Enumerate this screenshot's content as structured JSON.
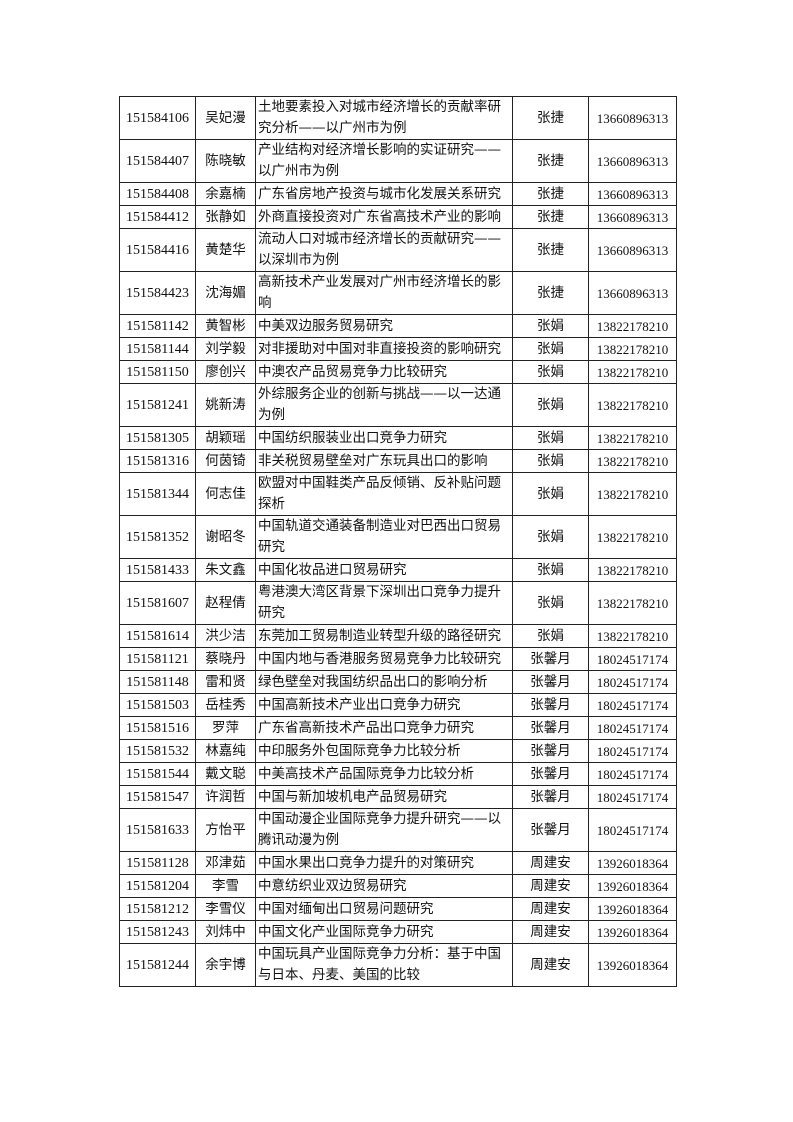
{
  "rows": [
    [
      "151584106",
      "吴妃漫",
      "土地要素投入对城市经济增长的贡献率研究分析——以广州市为例",
      "张捷",
      "13660896313"
    ],
    [
      "151584407",
      "陈晓敏",
      "产业结构对经济增长影响的实证研究——以广州市为例",
      "张捷",
      "13660896313"
    ],
    [
      "151584408",
      "余嘉楠",
      "广东省房地产投资与城市化发展关系研究",
      "张捷",
      "13660896313"
    ],
    [
      "151584412",
      "张静如",
      "外商直接投资对广东省高技术产业的影响",
      "张捷",
      "13660896313"
    ],
    [
      "151584416",
      "黄楚华",
      "流动人口对城市经济增长的贡献研究——以深圳市为例",
      "张捷",
      "13660896313"
    ],
    [
      "151584423",
      "沈海媚",
      "高新技术产业发展对广州市经济增长的影响",
      "张捷",
      "13660896313"
    ],
    [
      "151581142",
      "黄智彬",
      "中美双边服务贸易研究",
      "张娟",
      "13822178210"
    ],
    [
      "151581144",
      "刘学毅",
      "对非援助对中国对非直接投资的影响研究",
      "张娟",
      "13822178210"
    ],
    [
      "151581150",
      "廖创兴",
      "中澳农产品贸易竞争力比较研究",
      "张娟",
      "13822178210"
    ],
    [
      "151581241",
      "姚新涛",
      "外综服务企业的创新与挑战——以一达通为例",
      "张娟",
      "13822178210"
    ],
    [
      "151581305",
      "胡颖瑶",
      "中国纺织服装业出口竞争力研究",
      "张娟",
      "13822178210"
    ],
    [
      "151581316",
      "何茵锜",
      "非关税贸易壁垒对广东玩具出口的影响",
      "张娟",
      "13822178210"
    ],
    [
      "151581344",
      "何志佳",
      "欧盟对中国鞋类产品反倾销、反补贴问题探析",
      "张娟",
      "13822178210"
    ],
    [
      "151581352",
      "谢昭冬",
      "中国轨道交通装备制造业对巴西出口贸易研究",
      "张娟",
      "13822178210"
    ],
    [
      "151581433",
      "朱文鑫",
      "中国化妆品进口贸易研究",
      "张娟",
      "13822178210"
    ],
    [
      "151581607",
      "赵程倩",
      "粤港澳大湾区背景下深圳出口竞争力提升研究",
      "张娟",
      "13822178210"
    ],
    [
      "151581614",
      "洪少洁",
      "东莞加工贸易制造业转型升级的路径研究",
      "张娟",
      "13822178210"
    ],
    [
      "151581121",
      "蔡晓丹",
      "中国内地与香港服务贸易竞争力比较研究",
      "张馨月",
      "18024517174"
    ],
    [
      "151581148",
      "雷和贤",
      "绿色壁垒对我国纺织品出口的影响分析",
      "张馨月",
      "18024517174"
    ],
    [
      "151581503",
      "岳桂秀",
      "中国高新技术产业出口竞争力研究",
      "张馨月",
      "18024517174"
    ],
    [
      "151581516",
      "罗萍",
      "广东省高新技术产品出口竞争力研究",
      "张馨月",
      "18024517174"
    ],
    [
      "151581532",
      "林嘉纯",
      "中印服务外包国际竞争力比较分析",
      "张馨月",
      "18024517174"
    ],
    [
      "151581544",
      "戴文聪",
      "中美高技术产品国际竞争力比较分析",
      "张馨月",
      "18024517174"
    ],
    [
      "151581547",
      "许润哲",
      "中国与新加坡机电产品贸易研究",
      "张馨月",
      "18024517174"
    ],
    [
      "151581633",
      "方怡平",
      "中国动漫企业国际竞争力提升研究——以腾讯动漫为例",
      "张馨月",
      "18024517174"
    ],
    [
      "151581128",
      "邓津茹",
      "中国水果出口竞争力提升的对策研究",
      "周建安",
      "13926018364"
    ],
    [
      "151581204",
      "李雪",
      "中意纺织业双边贸易研究",
      "周建安",
      "13926018364"
    ],
    [
      "151581212",
      "李雪仪",
      "中国对缅甸出口贸易问题研究",
      "周建安",
      "13926018364"
    ],
    [
      "151581243",
      "刘炜中",
      "中国文化产业国际竞争力研究",
      "周建安",
      "13926018364"
    ],
    [
      "151581244",
      "余宇博",
      "中国玩具产业国际竞争力分析：基于中国与日本、丹麦、美国的比较",
      "周建安",
      "13926018364"
    ]
  ]
}
